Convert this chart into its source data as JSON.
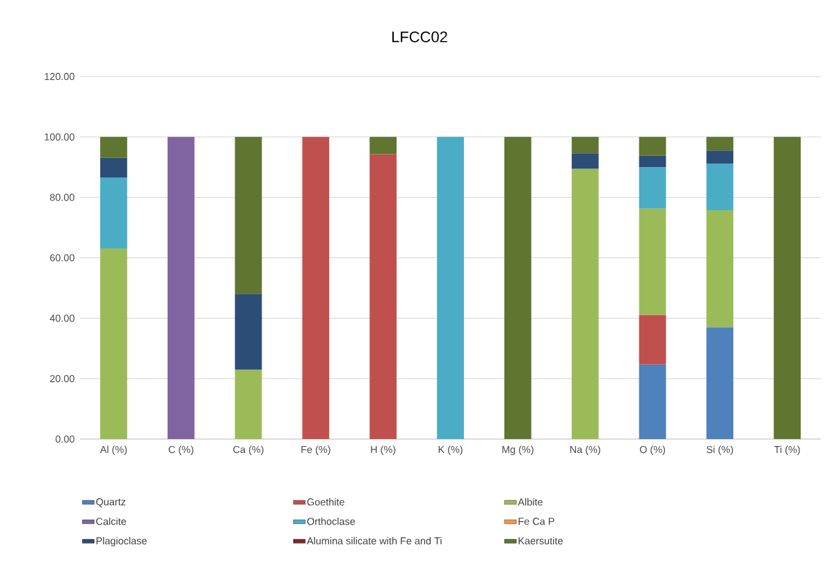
{
  "chart_data": {
    "type": "bar",
    "title": "LFCC02",
    "stacked": true,
    "grid": "y",
    "legend": "bottom",
    "categories": [
      "Al (%)",
      "C (%)",
      "Ca (%)",
      "Fe (%)",
      "H (%)",
      "K (%)",
      "Mg (%)",
      "Na (%)",
      "O (%)",
      "Si (%)",
      "Ti (%)"
    ],
    "ylim": [
      0,
      120
    ],
    "yticks": [
      {
        "value": 0,
        "label": "0.00"
      },
      {
        "value": 20,
        "label": "20.00"
      },
      {
        "value": 40,
        "label": "40.00"
      },
      {
        "value": 60,
        "label": "60.00"
      },
      {
        "value": 80,
        "label": "80.00"
      },
      {
        "value": 100,
        "label": "100.00"
      },
      {
        "value": 120,
        "label": "120.00"
      }
    ],
    "series": [
      {
        "name": "Quartz",
        "color": "#4f81bd",
        "values": [
          null,
          null,
          null,
          null,
          null,
          null,
          null,
          null,
          24.7,
          37.0,
          null
        ]
      },
      {
        "name": "Goethite",
        "color": "#c0504d",
        "values": [
          null,
          null,
          null,
          100,
          94.3,
          null,
          null,
          null,
          16.4,
          null,
          null
        ]
      },
      {
        "name": "Albite",
        "color": "#9bbb59",
        "values": [
          63.1,
          null,
          23.0,
          null,
          null,
          null,
          null,
          89.5,
          35.2,
          38.8,
          null
        ]
      },
      {
        "name": "Calcite",
        "color": "#8064a2",
        "values": [
          null,
          100,
          null,
          null,
          null,
          null,
          null,
          null,
          null,
          null,
          null
        ]
      },
      {
        "name": "Orthoclase",
        "color": "#4bacc6",
        "values": [
          23.5,
          null,
          null,
          null,
          null,
          100,
          null,
          null,
          13.7,
          15.4,
          null
        ]
      },
      {
        "name": "Fe Ca P",
        "color": "#f79646",
        "values": [
          null,
          null,
          null,
          null,
          null,
          null,
          null,
          null,
          null,
          null,
          null
        ]
      },
      {
        "name": "Plagioclase",
        "color": "#2c4d75",
        "values": [
          6.5,
          null,
          25.1,
          null,
          null,
          null,
          null,
          5.1,
          3.8,
          4.3,
          null
        ]
      },
      {
        "name": "Alumina silicate with Fe and Ti",
        "color": "#772c2a",
        "values": [
          null,
          null,
          null,
          null,
          null,
          null,
          null,
          null,
          null,
          null,
          null
        ]
      },
      {
        "name": "Kaersutite",
        "color": "#5f7530",
        "values": [
          6.9,
          null,
          51.9,
          null,
          5.7,
          null,
          100,
          5.4,
          6.2,
          4.5,
          100
        ]
      }
    ]
  }
}
